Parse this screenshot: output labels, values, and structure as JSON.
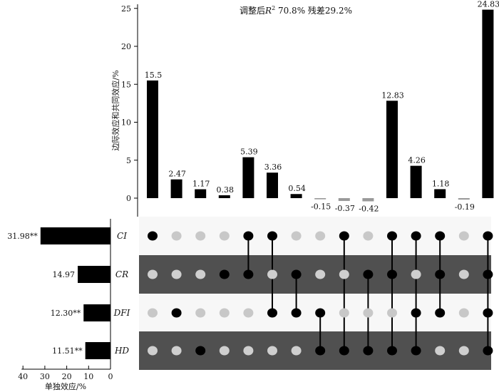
{
  "chart_data": {
    "type": "bar",
    "title": "",
    "annotation": {
      "prefix": "调整后",
      "symbol": "R",
      "superscript": "2",
      "r2_value": "70.8%",
      "residual_label": "残差29.2%"
    },
    "ylabel": "边际效应和共同效应/%",
    "ylim": [
      -2,
      25
    ],
    "yticks": [
      0,
      5,
      10,
      15,
      20,
      25
    ],
    "bars": {
      "values": [
        15.5,
        2.47,
        1.17,
        0.38,
        5.39,
        3.36,
        0.54,
        -0.15,
        -0.37,
        -0.42,
        12.83,
        4.26,
        1.18,
        -0.19,
        24.83
      ],
      "labels": [
        "15.5",
        "2.47",
        "1.17",
        "0.38",
        "5.39",
        "3.36",
        "0.54",
        "-0.15",
        "-0.37",
        "-0.42",
        "12.83",
        "4.26",
        "1.18",
        "-0.19",
        "24.83"
      ],
      "positive_color": "#000000",
      "negative_color": "#999999"
    },
    "sets": [
      "CI",
      "CR",
      "DFI",
      "HD"
    ],
    "membership": [
      [
        1,
        0,
        0,
        0
      ],
      [
        0,
        0,
        1,
        0
      ],
      [
        0,
        0,
        0,
        1
      ],
      [
        0,
        1,
        0,
        0
      ],
      [
        1,
        1,
        0,
        0
      ],
      [
        1,
        0,
        1,
        0
      ],
      [
        0,
        1,
        1,
        0
      ],
      [
        0,
        0,
        1,
        1
      ],
      [
        1,
        0,
        0,
        1
      ],
      [
        0,
        1,
        0,
        1
      ],
      [
        1,
        1,
        0,
        1
      ],
      [
        1,
        0,
        1,
        1
      ],
      [
        1,
        1,
        1,
        0
      ],
      [
        0,
        0,
        0,
        0
      ],
      [
        1,
        1,
        1,
        1
      ]
    ],
    "matrix_colors": {
      "band_light": "#f7f7f7",
      "band_dark": "#505050",
      "dot_on": "#000000",
      "dot_off_on_light": "#c8c8c8",
      "dot_off_on_dark": "#cfcfcf"
    },
    "individual": {
      "xlabel": "单独效应/%",
      "xlim": [
        0,
        40
      ],
      "xticks": [
        40,
        30,
        20,
        10,
        0
      ],
      "values": [
        31.98,
        14.97,
        12.3,
        11.51
      ],
      "labels": [
        "31.98**",
        "14.97",
        "12.30**",
        "11.51**"
      ]
    }
  }
}
